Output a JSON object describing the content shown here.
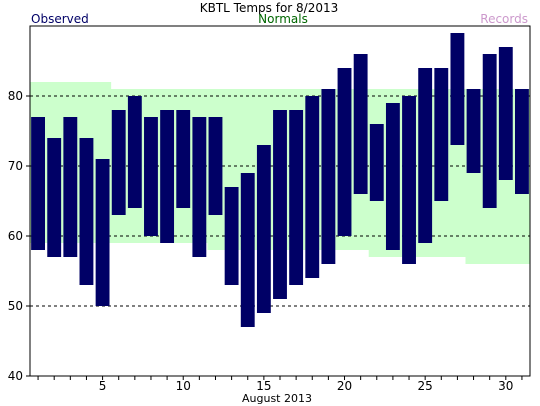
{
  "chart_data": {
    "type": "bar",
    "title": "KBTL Temps for 8/2013",
    "xlabel": "August 2013",
    "ylabel": "",
    "legend": {
      "observed": "Observed",
      "normals": "Normals",
      "records": "Records",
      "placement": "top"
    },
    "colors": {
      "observed": "#000066",
      "normals_text": "#006600",
      "normals_fill": "#ccffcc",
      "records": "#cc99cc",
      "grid": "#000000"
    },
    "grid": true,
    "ylim": [
      40,
      90
    ],
    "yticks": [
      40,
      50,
      60,
      70,
      80
    ],
    "xlim": [
      0.5,
      31.5
    ],
    "xticks": [
      5,
      10,
      15,
      20,
      25,
      30
    ],
    "days": [
      1,
      2,
      3,
      4,
      5,
      6,
      7,
      8,
      9,
      10,
      11,
      12,
      13,
      14,
      15,
      16,
      17,
      18,
      19,
      20,
      21,
      22,
      23,
      24,
      25,
      26,
      27,
      28,
      29,
      30,
      31
    ],
    "series": [
      {
        "name": "Observed",
        "high": [
          77,
          74,
          77,
          74,
          71,
          78,
          80,
          77,
          78,
          78,
          77,
          77,
          67,
          69,
          73,
          78,
          78,
          80,
          81,
          84,
          86,
          76,
          79,
          80,
          84,
          84,
          89,
          81,
          86,
          87,
          81
        ],
        "low": [
          58,
          57,
          57,
          53,
          50,
          63,
          64,
          60,
          59,
          64,
          57,
          63,
          53,
          47,
          49,
          51,
          53,
          54,
          56,
          60,
          66,
          65,
          58,
          56,
          59,
          65,
          73,
          69,
          64,
          68,
          66
        ]
      },
      {
        "name": "Normals",
        "high": [
          82,
          82,
          82,
          82,
          82,
          81,
          81,
          81,
          81,
          81,
          81,
          81,
          81,
          81,
          81,
          81,
          81,
          81,
          81,
          81,
          81,
          81,
          81,
          81,
          81,
          81,
          81,
          81,
          81,
          81,
          81
        ],
        "low": [
          59,
          59,
          59,
          59,
          59,
          59,
          59,
          59,
          59,
          59,
          59,
          58,
          58,
          58,
          58,
          58,
          58,
          58,
          58,
          58,
          58,
          57,
          57,
          57,
          57,
          57,
          57,
          56,
          56,
          56,
          56
        ]
      }
    ]
  }
}
